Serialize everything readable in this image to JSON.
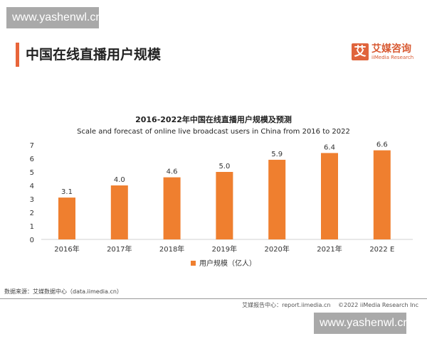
{
  "watermark": "www.yashenwl.cn",
  "page_title": "中国在线直播用户规模",
  "logo": {
    "mark": "艾",
    "name_cn": "艾媒咨询",
    "name_en": "iiMedia Research"
  },
  "chart_data": {
    "type": "bar",
    "title": "2016-2022年中国在线直播用户规模及预测",
    "subtitle": "Scale and forecast of online live broadcast users in China from 2016 to 2022",
    "categories": [
      "2016年",
      "2017年",
      "2018年",
      "2019年",
      "2020年",
      "2021年",
      "2022 E"
    ],
    "series": [
      {
        "name": "用户规模（亿人）",
        "values": [
          3.1,
          4.0,
          4.6,
          5.0,
          5.9,
          6.4,
          6.6
        ]
      }
    ],
    "data_labels": [
      "3.1",
      "4.0",
      "4.6",
      "5.0",
      "5.9",
      "6.4",
      "6.6"
    ],
    "ylim": [
      0,
      7
    ],
    "yticks": [
      0,
      1,
      2,
      3,
      4,
      5,
      6,
      7
    ],
    "grid": false,
    "legend": "bottom",
    "color": "#ef7f2f"
  },
  "source": "数据来源：艾媒数据中心（data.iimedia.cn）",
  "footer": "艾媒报告中心：report.iimedia.cn　 ©2022  iiMedia Research  Inc"
}
